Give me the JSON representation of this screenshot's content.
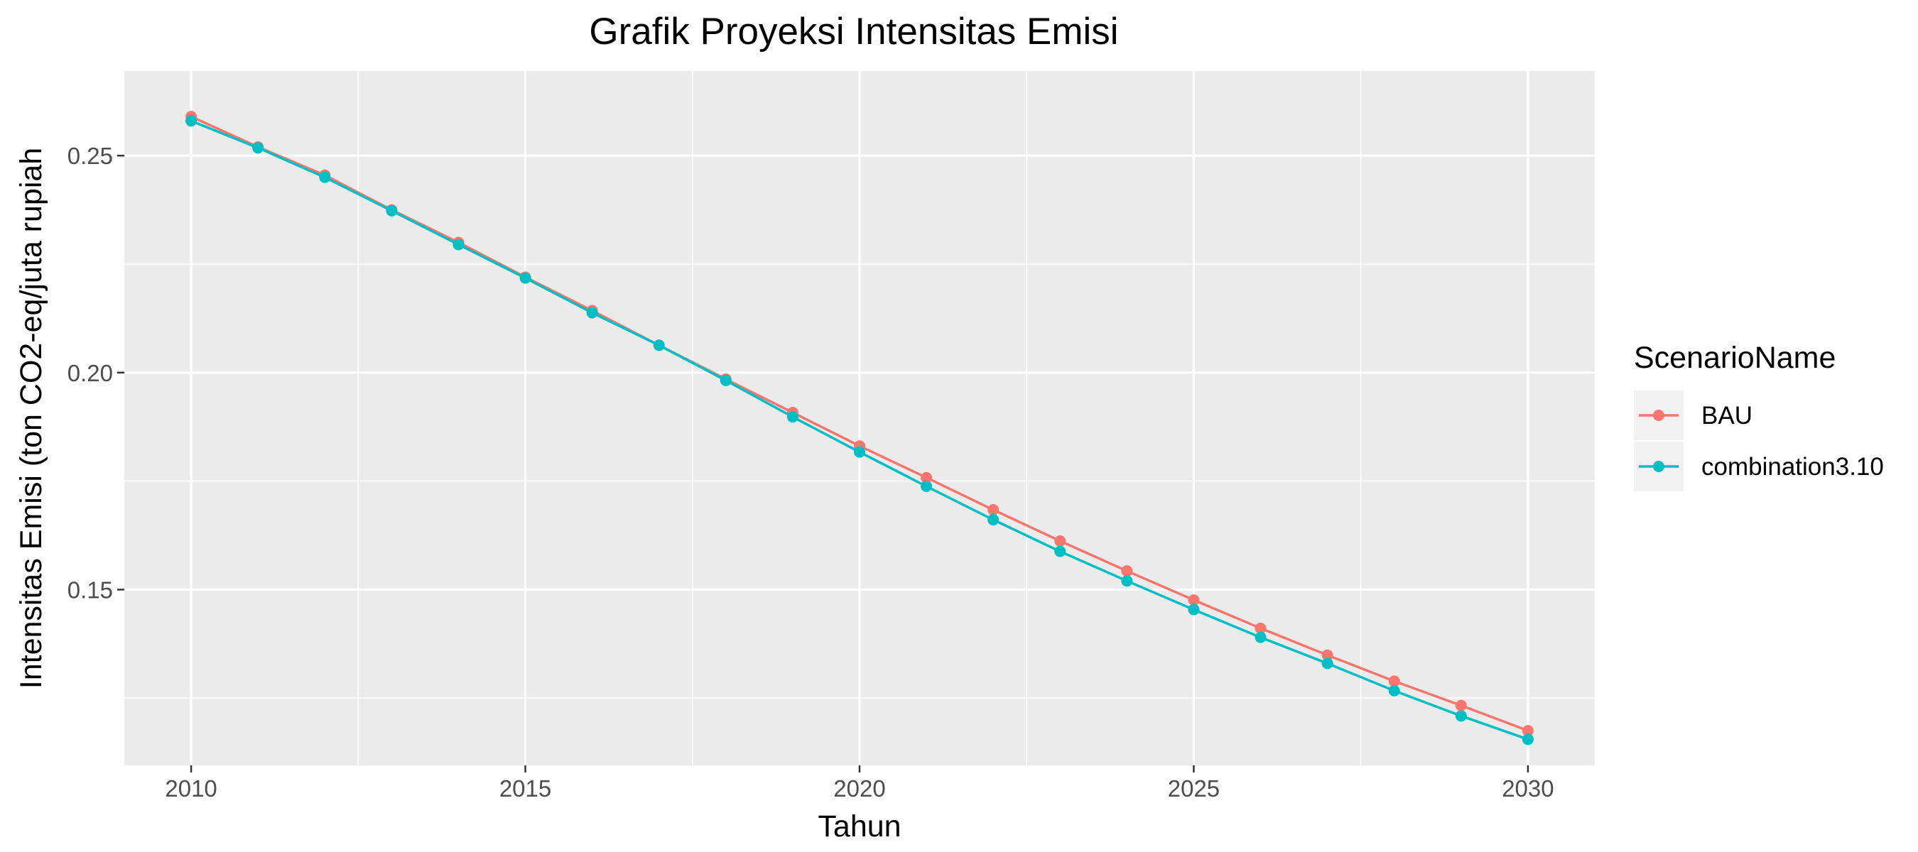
{
  "chart_data": {
    "type": "line",
    "title": "Grafik Proyeksi Intensitas Emisi",
    "xlabel": "Tahun",
    "ylabel": "Intensitas Emisi (ton CO2-eq/juta rupiah",
    "xlim": [
      2009,
      2031
    ],
    "ylim": [
      0.1095,
      0.2695
    ],
    "x_ticks": [
      2010,
      2015,
      2020,
      2025,
      2030
    ],
    "x_tick_labels": [
      "2010",
      "2015",
      "2020",
      "2025",
      "2030"
    ],
    "y_ticks": [
      0.15,
      0.2,
      0.25
    ],
    "y_tick_labels": [
      "0.15",
      "0.20",
      "0.25"
    ],
    "grid": true,
    "legend": {
      "title": "ScenarioName",
      "position": "right"
    },
    "x": [
      2010,
      2011,
      2012,
      2013,
      2014,
      2015,
      2016,
      2017,
      2018,
      2019,
      2020,
      2021,
      2022,
      2023,
      2024,
      2025,
      2026,
      2027,
      2028,
      2029,
      2030
    ],
    "series": [
      {
        "name": "BAU",
        "color": "#F8766D",
        "values": [
          0.259,
          0.252,
          0.2455,
          0.2375,
          0.23,
          0.222,
          0.2143,
          0.2063,
          0.1985,
          0.1908,
          0.1831,
          0.1758,
          0.1684,
          0.1612,
          0.1543,
          0.1476,
          0.1411,
          0.1349,
          0.1289,
          0.1233,
          0.1175
        ]
      },
      {
        "name": "combination3.10",
        "color": "#00BFC4",
        "values": [
          0.258,
          0.2518,
          0.245,
          0.2373,
          0.2295,
          0.2218,
          0.2138,
          0.2063,
          0.1982,
          0.1898,
          0.1817,
          0.1738,
          0.1661,
          0.1588,
          0.152,
          0.1454,
          0.139,
          0.133,
          0.1267,
          0.1209,
          0.1155
        ]
      }
    ]
  }
}
